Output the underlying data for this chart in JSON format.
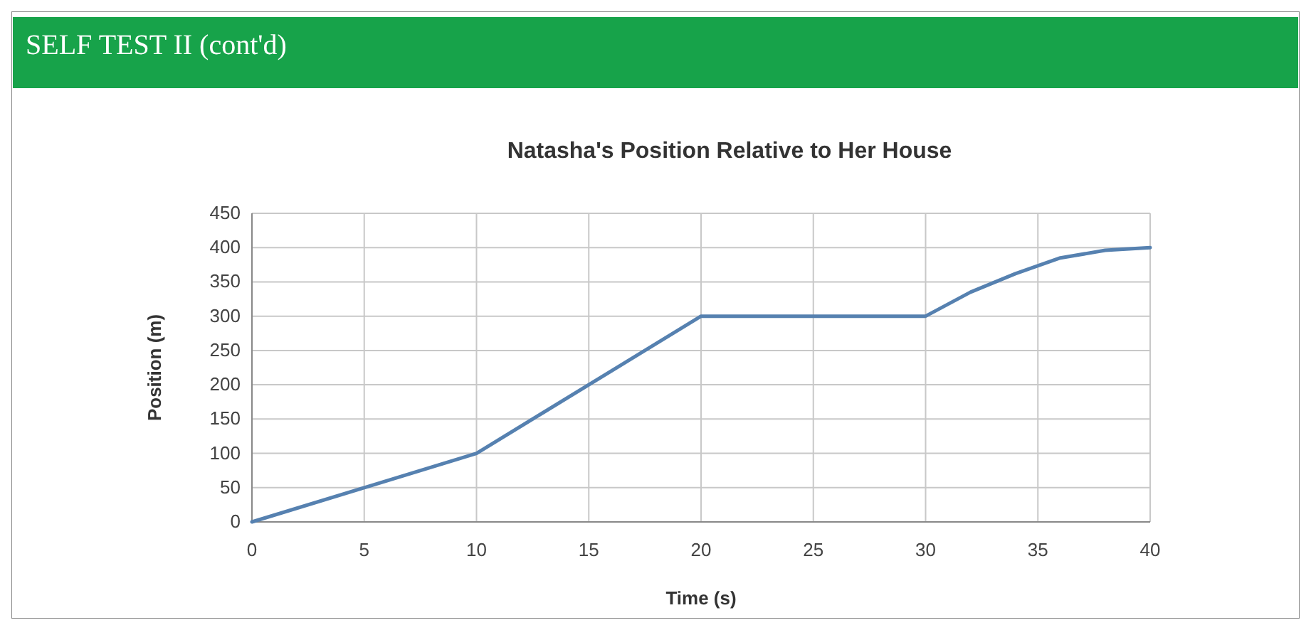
{
  "chart_data": {
    "type": "line",
    "title": "Natasha's Position Relative to Her House",
    "xlabel": "Time (s)",
    "ylabel": "Position (m)",
    "annotations": [
      "SELF TEST II (cont'd)"
    ],
    "x": [
      0,
      5,
      10,
      20,
      30,
      32,
      34,
      36,
      38,
      40
    ],
    "series": [
      {
        "color": "#5681b0",
        "values": [
          0,
          50,
          100,
          300,
          300,
          335,
          362,
          385,
          396,
          400
        ]
      }
    ],
    "xlim": [
      0,
      40
    ],
    "xticks": [
      0,
      5,
      10,
      15,
      20,
      25,
      30,
      35,
      40
    ],
    "ylim": [
      0,
      450
    ],
    "yticks": [
      0,
      50,
      100,
      150,
      200,
      250,
      300,
      350,
      400,
      450
    ],
    "grid": true,
    "marker": "none",
    "line_style": "solid"
  }
}
